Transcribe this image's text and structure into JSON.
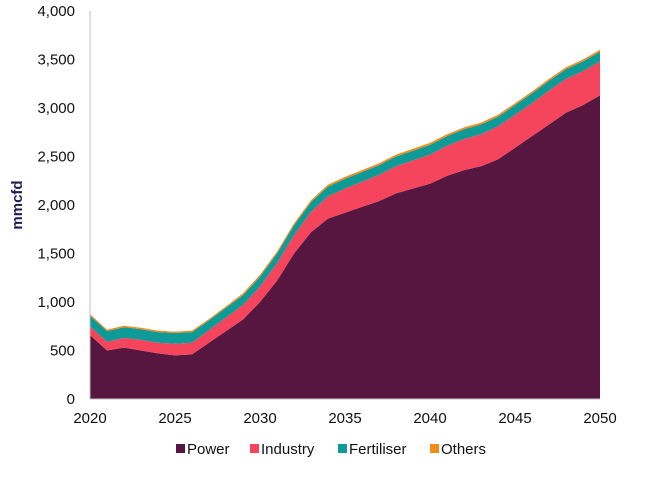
{
  "chart_data": {
    "type": "area",
    "stacked": true,
    "ylabel": "mmcfd",
    "xlabel": "",
    "xlim": [
      2020,
      2050
    ],
    "ylim": [
      0,
      4000
    ],
    "x_ticks": [
      "2020",
      "2025",
      "2030",
      "2035",
      "2040",
      "2045",
      "2050"
    ],
    "y_ticks": [
      "0",
      "500",
      "1,000",
      "1,500",
      "2,000",
      "2,500",
      "3,000",
      "3,500",
      "4,000"
    ],
    "x": [
      2020,
      2021,
      2022,
      2023,
      2024,
      2025,
      2026,
      2027,
      2028,
      2029,
      2030,
      2031,
      2032,
      2033,
      2034,
      2035,
      2036,
      2037,
      2038,
      2039,
      2040,
      2041,
      2042,
      2043,
      2044,
      2045,
      2046,
      2047,
      2048,
      2049,
      2050
    ],
    "series": [
      {
        "name": "Power",
        "color": "#561640",
        "values": [
          660,
          500,
          530,
          500,
          470,
          450,
          460,
          580,
          700,
          820,
          1000,
          1220,
          1500,
          1720,
          1860,
          1920,
          1980,
          2040,
          2120,
          2170,
          2220,
          2300,
          2360,
          2400,
          2470,
          2590,
          2710,
          2830,
          2950,
          3030,
          3130
        ]
      },
      {
        "name": "Industry",
        "color": "#f5455c",
        "values": [
          90,
          90,
          100,
          110,
          110,
          120,
          120,
          130,
          140,
          150,
          160,
          180,
          190,
          210,
          230,
          250,
          260,
          270,
          280,
          290,
          300,
          310,
          320,
          330,
          340,
          340,
          340,
          350,
          350,
          350,
          350
        ]
      },
      {
        "name": "Fertiliser",
        "color": "#0e9b97",
        "values": [
          110,
          110,
          110,
          110,
          110,
          110,
          110,
          100,
          100,
          100,
          100,
          100,
          100,
          100,
          100,
          100,
          100,
          100,
          100,
          100,
          100,
          100,
          100,
          100,
          100,
          100,
          100,
          100,
          100,
          100,
          100
        ]
      },
      {
        "name": "Others",
        "color": "#f08c1e",
        "values": [
          15,
          15,
          15,
          15,
          15,
          15,
          15,
          15,
          15,
          20,
          20,
          20,
          20,
          20,
          20,
          20,
          20,
          20,
          20,
          20,
          20,
          20,
          20,
          20,
          20,
          20,
          20,
          20,
          20,
          20,
          20
        ]
      }
    ],
    "legend_position": "bottom",
    "grid": false
  }
}
